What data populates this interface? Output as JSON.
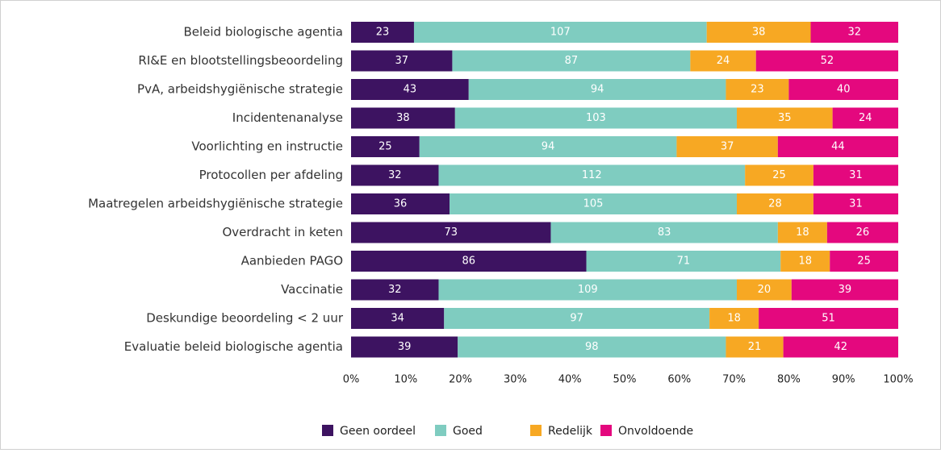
{
  "chart_data": {
    "type": "bar",
    "orientation": "horizontal",
    "stacking": "percent",
    "categories": [
      "Beleid biologische agentia",
      "RI&E en blootstellingsbeoordeling",
      "PvA, arbeidshygiënische strategie",
      "Incidentenanalyse",
      "Voorlichting en instructie",
      "Protocollen per afdeling",
      "Maatregelen arbeidshygiënische strategie",
      "Overdracht in keten",
      "Aanbieden PAGO",
      "Vaccinatie",
      "Deskundige beoordeling < 2 uur",
      "Evaluatie beleid biologische agentia"
    ],
    "series": [
      {
        "name": "Geen oordeel",
        "color": "#3d1361",
        "values": [
          23,
          37,
          43,
          38,
          25,
          32,
          36,
          73,
          86,
          32,
          34,
          39
        ]
      },
      {
        "name": "Goed",
        "color": "#7fccc0",
        "values": [
          107,
          87,
          94,
          103,
          94,
          112,
          105,
          83,
          71,
          109,
          97,
          98
        ]
      },
      {
        "name": "Redelijk",
        "color": "#f7a823",
        "values": [
          38,
          24,
          23,
          35,
          37,
          25,
          28,
          18,
          18,
          20,
          18,
          21
        ]
      },
      {
        "name": "Onvoldoende",
        "color": "#e4087e",
        "values": [
          32,
          52,
          40,
          24,
          44,
          31,
          31,
          26,
          25,
          39,
          51,
          42
        ]
      }
    ],
    "xlim": [
      0,
      100
    ],
    "xticks": [
      {
        "value": 0,
        "label": "0%"
      },
      {
        "value": 10,
        "label": "10%"
      },
      {
        "value": 20,
        "label": "20%"
      },
      {
        "value": 30,
        "label": "30%"
      },
      {
        "value": 40,
        "label": "40%"
      },
      {
        "value": 50,
        "label": "50%"
      },
      {
        "value": 60,
        "label": "60%"
      },
      {
        "value": 70,
        "label": "70%"
      },
      {
        "value": 80,
        "label": "80%"
      },
      {
        "value": 90,
        "label": "90%"
      },
      {
        "value": 100,
        "label": "100%"
      }
    ],
    "legend": "bottom"
  }
}
